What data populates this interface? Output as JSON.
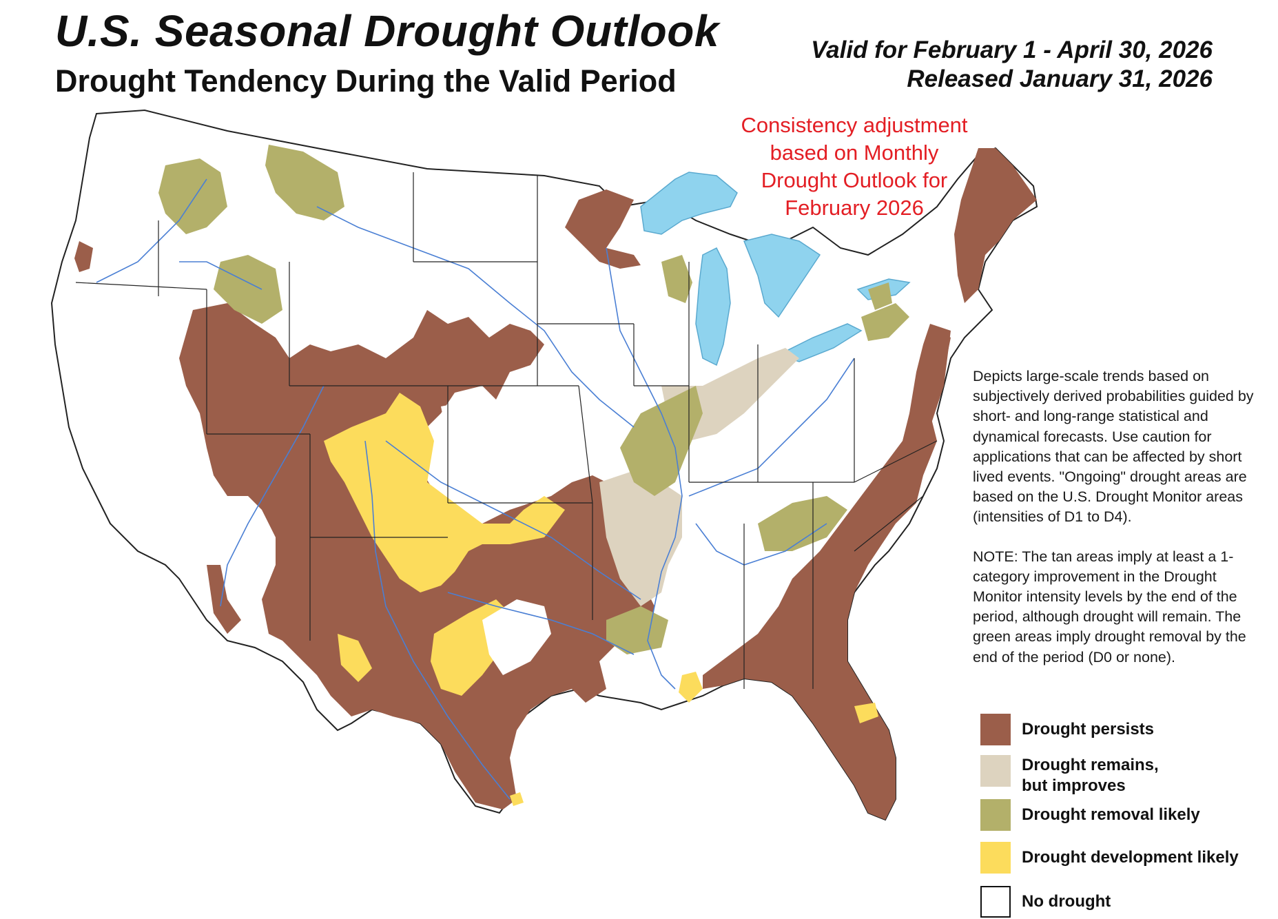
{
  "header": {
    "title": "U.S. Seasonal Drought Outlook",
    "subtitle": "Drought Tendency During the Valid Period",
    "valid": "Valid for February 1 - April 30, 2026",
    "released": "Released January 31, 2026"
  },
  "annotation": {
    "line1": "Consistency adjustment",
    "line2": "based on Monthly",
    "line3": "Drought Outlook for",
    "line4": "February 2026"
  },
  "description": {
    "para1": "Depicts large-scale trends based on subjectively derived probabilities guided by short- and long-range statistical and dynamical forecasts. Use caution for applications that can be affected by short lived events. \"Ongoing\" drought areas are based on the U.S. Drought Monitor areas (intensities of D1 to D4).",
    "para2": "NOTE: The tan areas imply at least a 1-category improvement in the Drought Monitor intensity levels by the end of the period, although drought will remain. The green areas imply drought removal by the end of the period (D0 or none)."
  },
  "legend": {
    "persists": {
      "label": "Drought persists",
      "color": "#9b5e4a"
    },
    "improves": {
      "label1": "Drought remains,",
      "label2": "but improves",
      "color": "#ddd3bf"
    },
    "removal": {
      "label": "Drought removal likely",
      "color": "#b3b06a"
    },
    "development": {
      "label": "Drought development likely",
      "color": "#fcdc5c"
    },
    "none": {
      "label": "No drought",
      "color": "#ffffff"
    }
  },
  "colors": {
    "water": "#8fd3ee",
    "rivers": "#4a7fd4",
    "borders": "#222222"
  }
}
